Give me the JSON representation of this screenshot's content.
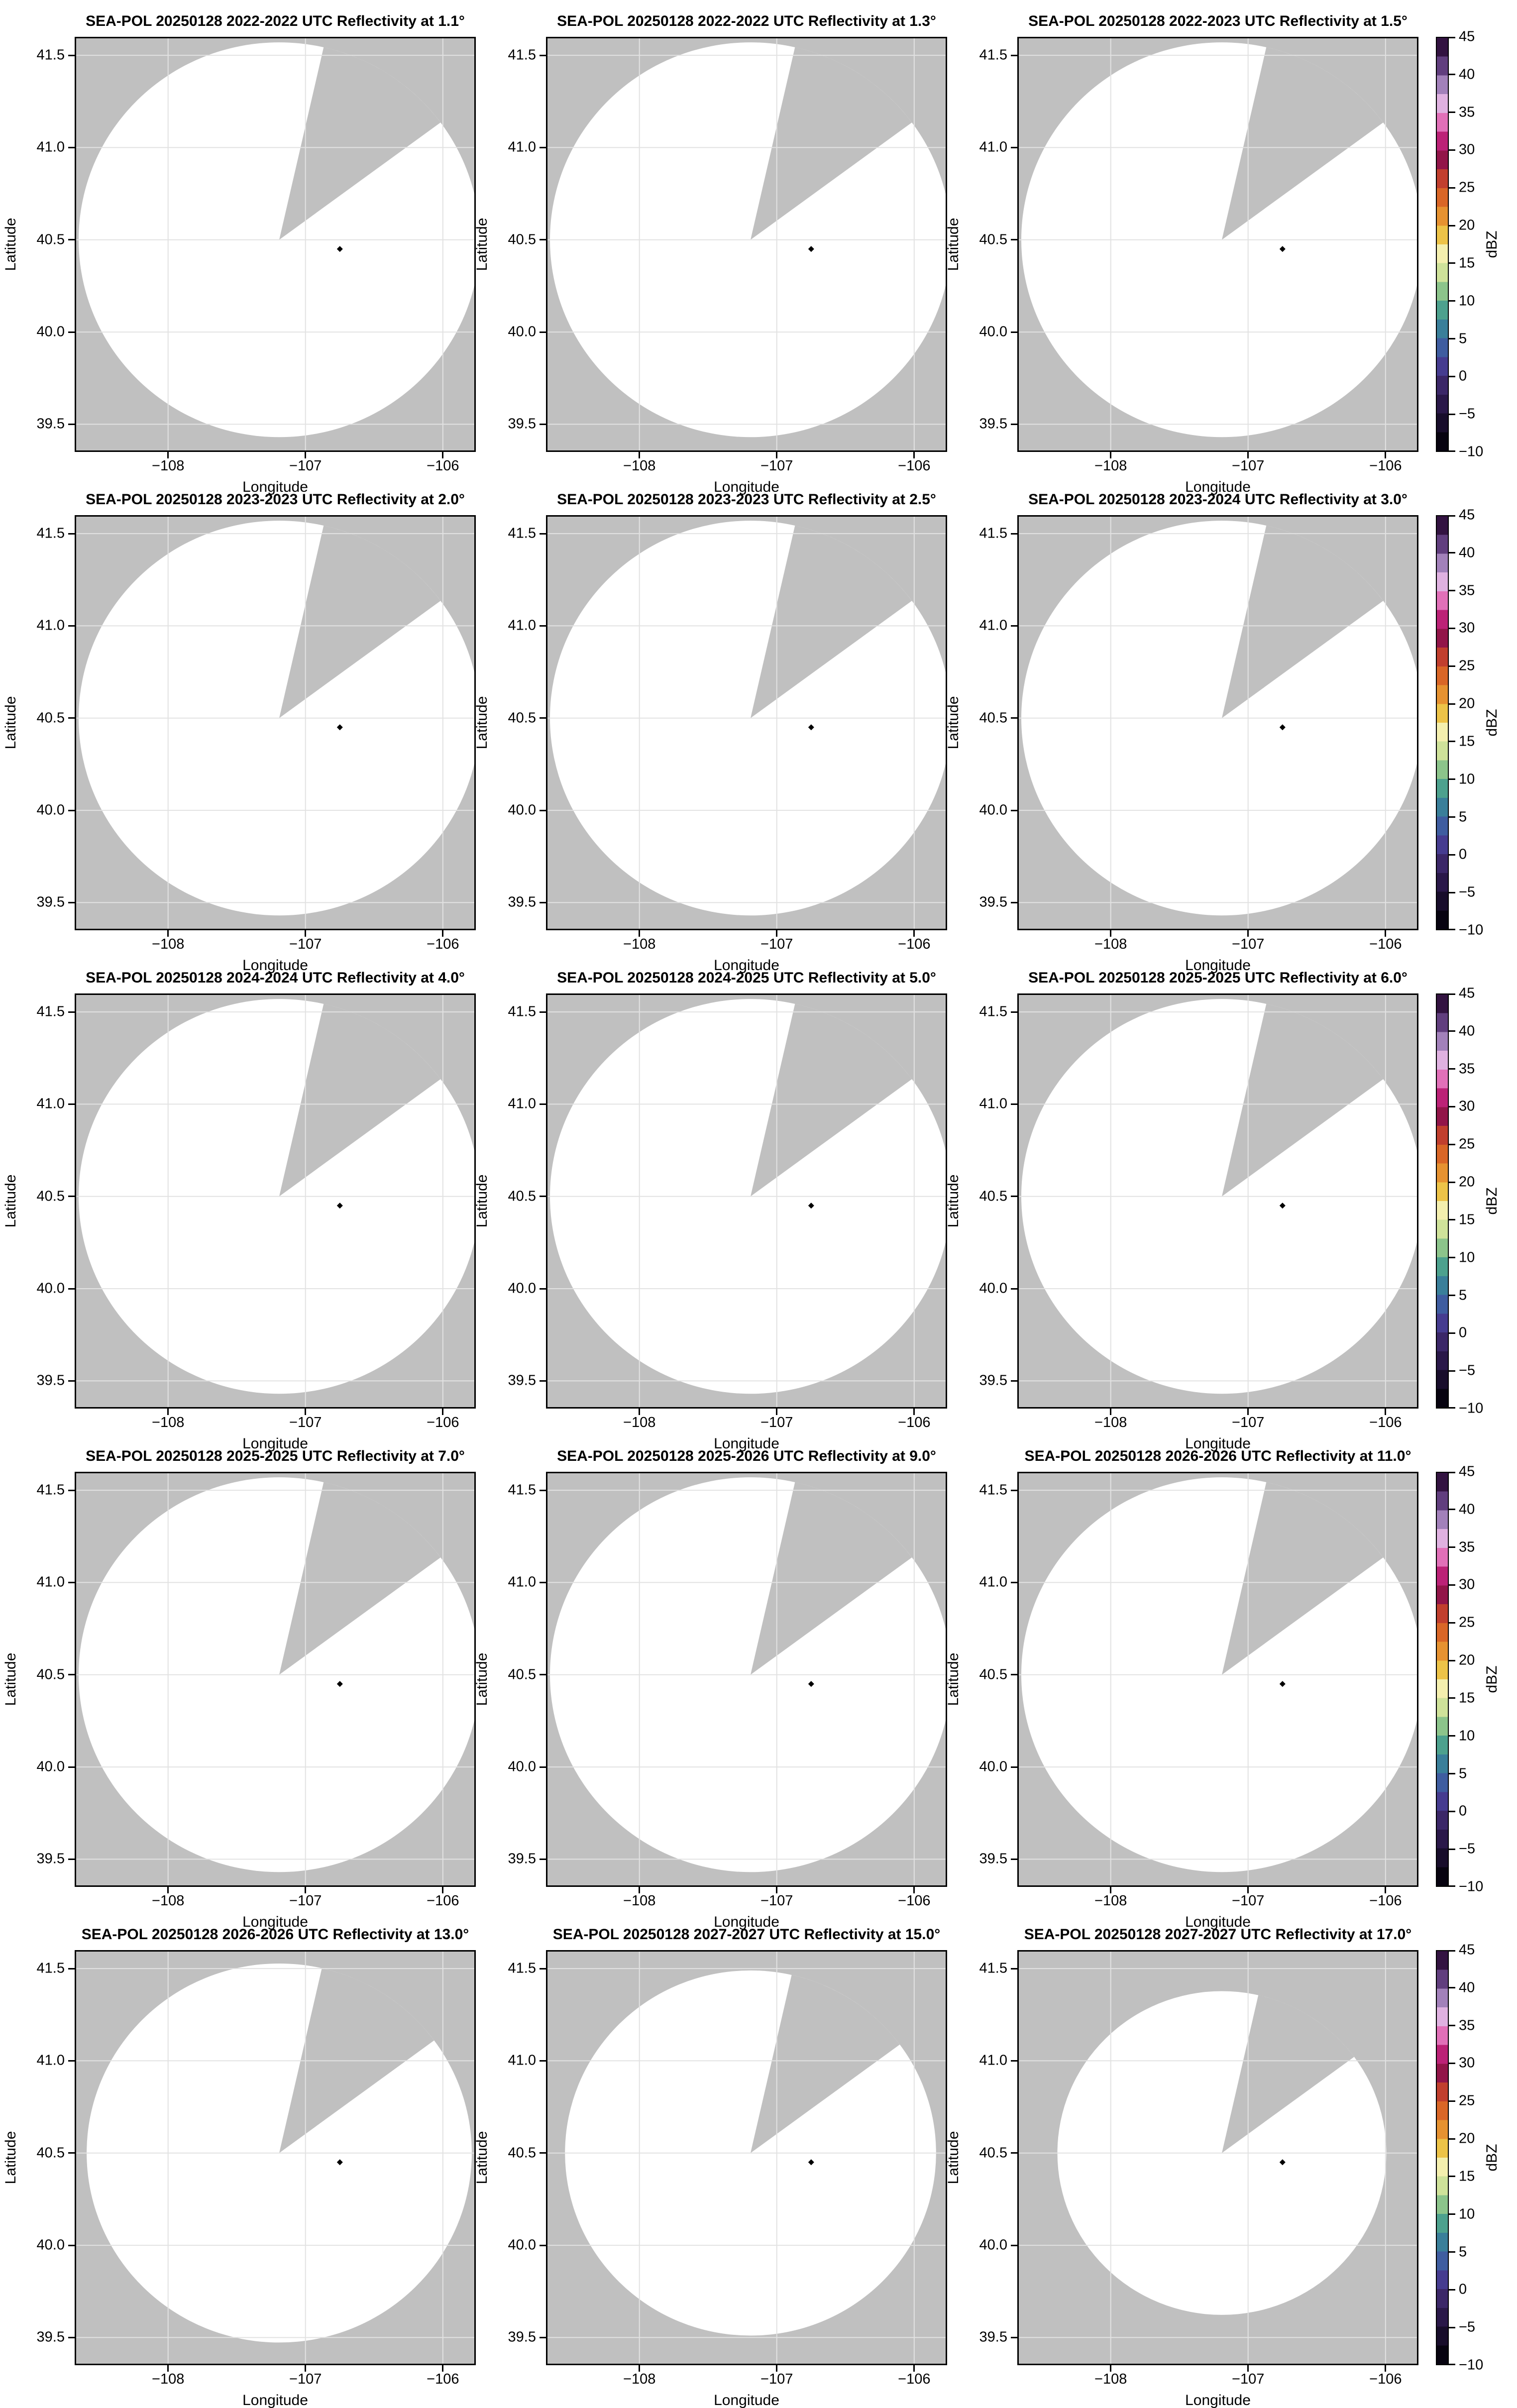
{
  "figure": {
    "bg": "#ffffff",
    "panel_bg": "#c0c0c0",
    "grid_color": "#e2e2e2",
    "border_color": "#000000",
    "marker_color": "#000000"
  },
  "axes": {
    "xlabel": "Longitude",
    "ylabel": "Latitude",
    "xticks": [
      "−108",
      "−107",
      "−106"
    ],
    "yticks": [
      "41.5",
      "41.0",
      "40.5",
      "40.0",
      "39.5"
    ]
  },
  "panels": [
    {
      "title": "SEA-POL 20250128 2022-2022 UTC Reflectivity at 1.1°",
      "disk_scale": 1.0
    },
    {
      "title": "SEA-POL 20250128 2022-2022 UTC Reflectivity at 1.3°",
      "disk_scale": 1.0
    },
    {
      "title": "SEA-POL 20250128 2022-2023 UTC Reflectivity at 1.5°",
      "disk_scale": 1.0
    },
    {
      "title": "SEA-POL 20250128 2023-2023 UTC Reflectivity at 2.0°",
      "disk_scale": 1.0
    },
    {
      "title": "SEA-POL 20250128 2023-2023 UTC Reflectivity at 2.5°",
      "disk_scale": 1.0
    },
    {
      "title": "SEA-POL 20250128 2023-2024 UTC Reflectivity at 3.0°",
      "disk_scale": 1.0
    },
    {
      "title": "SEA-POL 20250128 2024-2024 UTC Reflectivity at 4.0°",
      "disk_scale": 1.0
    },
    {
      "title": "SEA-POL 20250128 2024-2025 UTC Reflectivity at 5.0°",
      "disk_scale": 1.0
    },
    {
      "title": "SEA-POL 20250128 2025-2025 UTC Reflectivity at 6.0°",
      "disk_scale": 1.0
    },
    {
      "title": "SEA-POL 20250128 2025-2025 UTC Reflectivity at 7.0°",
      "disk_scale": 1.0
    },
    {
      "title": "SEA-POL 20250128 2025-2026 UTC Reflectivity at 9.0°",
      "disk_scale": 1.0
    },
    {
      "title": "SEA-POL 20250128 2026-2026 UTC Reflectivity at 11.0°",
      "disk_scale": 1.0
    },
    {
      "title": "SEA-POL 20250128 2026-2026 UTC Reflectivity at 13.0°",
      "disk_scale": 0.96
    },
    {
      "title": "SEA-POL 20250128 2027-2027 UTC Reflectivity at 15.0°",
      "disk_scale": 0.925
    },
    {
      "title": "SEA-POL 20250128 2027-2027 UTC Reflectivity at 17.0°",
      "disk_scale": 0.82
    }
  ],
  "colorbar": {
    "label": "dBZ",
    "ticks": [
      "45",
      "40",
      "35",
      "30",
      "25",
      "20",
      "15",
      "10",
      "5",
      "0",
      "−5",
      "−10"
    ],
    "segment_colors": [
      "#331341",
      "#613e7e",
      "#a281ba",
      "#dfb1e0",
      "#e170b8",
      "#bc2277",
      "#921549",
      "#c13f2e",
      "#d96627",
      "#e69231",
      "#edc348",
      "#f4efae",
      "#cfe29a",
      "#8cc48b",
      "#4da18e",
      "#3a7f9a",
      "#3f5da0",
      "#463c90",
      "#3b2768",
      "#2a1849",
      "#180d2b",
      "#070310"
    ]
  },
  "chart_data": {
    "type": "heatmap",
    "title": "SEA-POL radar reflectivity PPI scans, 5x3 panel grid, 20250128",
    "xlabel": "Longitude",
    "ylabel": "Latitude",
    "xlim": [
      -108.68,
      -105.76
    ],
    "ylim": [
      39.35,
      41.6
    ],
    "xticks": [
      -108,
      -107,
      -106
    ],
    "yticks": [
      41.5,
      41.0,
      40.5,
      40.0,
      39.5
    ],
    "grid": true,
    "colorbar": {
      "label": "dBZ",
      "min": -10,
      "max": 45,
      "tick_step": 5,
      "colormap": "ChaseSpectral-like (black-purple-blue-teal-green-yellow-orange-red-magenta-pink-purple)"
    },
    "values_note": "No reflectivity echoes visible in any panel; scanned disk is blank (white) on gray no-data background",
    "scan_disk": {
      "center_lon": -107.19,
      "center_lat": 40.5,
      "radius_lon_deg": 1.46,
      "radius_lat_deg": 1.07
    },
    "missing_sector_azimuth_deg": [
      13,
      54
    ],
    "site_marker": {
      "lon": -106.75,
      "lat": 40.45
    },
    "panels": [
      {
        "radar": "SEA-POL",
        "date": "20250128",
        "time_utc": "2022-2022",
        "elevation_deg": 1.1
      },
      {
        "radar": "SEA-POL",
        "date": "20250128",
        "time_utc": "2022-2022",
        "elevation_deg": 1.3
      },
      {
        "radar": "SEA-POL",
        "date": "20250128",
        "time_utc": "2022-2023",
        "elevation_deg": 1.5
      },
      {
        "radar": "SEA-POL",
        "date": "20250128",
        "time_utc": "2023-2023",
        "elevation_deg": 2.0
      },
      {
        "radar": "SEA-POL",
        "date": "20250128",
        "time_utc": "2023-2023",
        "elevation_deg": 2.5
      },
      {
        "radar": "SEA-POL",
        "date": "20250128",
        "time_utc": "2023-2024",
        "elevation_deg": 3.0
      },
      {
        "radar": "SEA-POL",
        "date": "20250128",
        "time_utc": "2024-2024",
        "elevation_deg": 4.0
      },
      {
        "radar": "SEA-POL",
        "date": "20250128",
        "time_utc": "2024-2025",
        "elevation_deg": 5.0
      },
      {
        "radar": "SEA-POL",
        "date": "20250128",
        "time_utc": "2025-2025",
        "elevation_deg": 6.0
      },
      {
        "radar": "SEA-POL",
        "date": "20250128",
        "time_utc": "2025-2025",
        "elevation_deg": 7.0
      },
      {
        "radar": "SEA-POL",
        "date": "20250128",
        "time_utc": "2025-2026",
        "elevation_deg": 9.0
      },
      {
        "radar": "SEA-POL",
        "date": "20250128",
        "time_utc": "2026-2026",
        "elevation_deg": 11.0
      },
      {
        "radar": "SEA-POL",
        "date": "20250128",
        "time_utc": "2026-2026",
        "elevation_deg": 13.0
      },
      {
        "radar": "SEA-POL",
        "date": "20250128",
        "time_utc": "2027-2027",
        "elevation_deg": 15.0
      },
      {
        "radar": "SEA-POL",
        "date": "20250128",
        "time_utc": "2027-2027",
        "elevation_deg": 17.0
      }
    ]
  }
}
